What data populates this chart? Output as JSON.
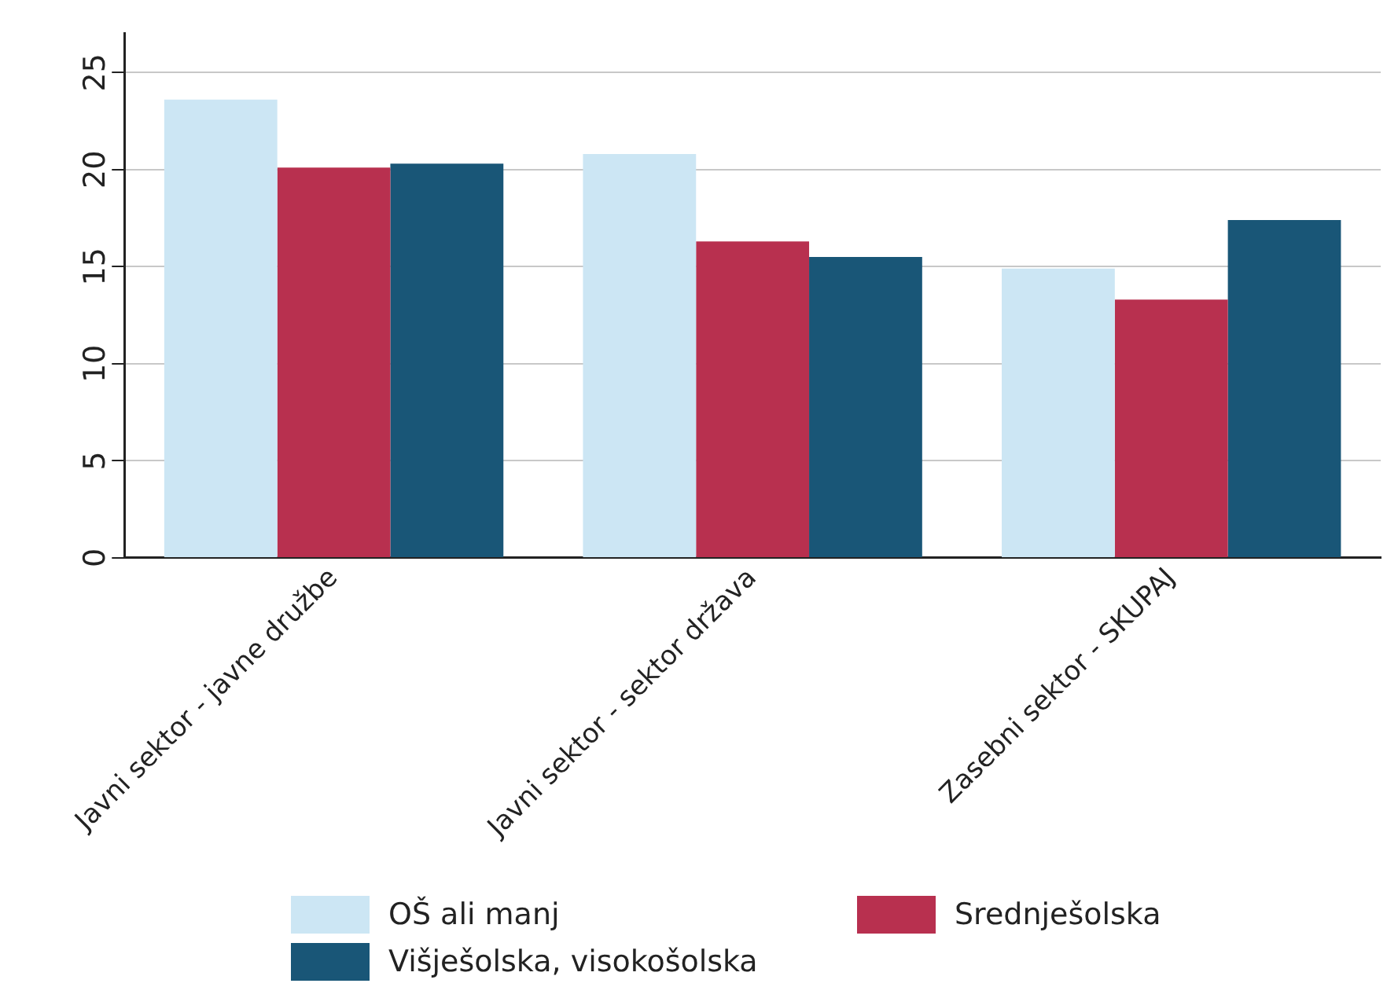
{
  "chart_data": {
    "type": "bar",
    "categories": [
      "Javni sektor - javne družbe",
      "Javni sektor - sektor država",
      "Zasebni sektor - SKUPAJ"
    ],
    "series": [
      {
        "name": "OŠ ali manj",
        "color": "#cce6f4",
        "values": [
          23.6,
          20.8,
          14.9
        ]
      },
      {
        "name": "Srednješolska",
        "color": "#b8304f",
        "values": [
          20.1,
          16.3,
          13.3
        ]
      },
      {
        "name": "Višješolska, visokošolska",
        "color": "#195677",
        "values": [
          20.3,
          15.5,
          17.4
        ]
      }
    ],
    "ylim": [
      0,
      27
    ],
    "yticks": [
      0,
      5,
      10,
      15,
      20,
      25
    ],
    "grid": "y",
    "legend": "bottom"
  }
}
